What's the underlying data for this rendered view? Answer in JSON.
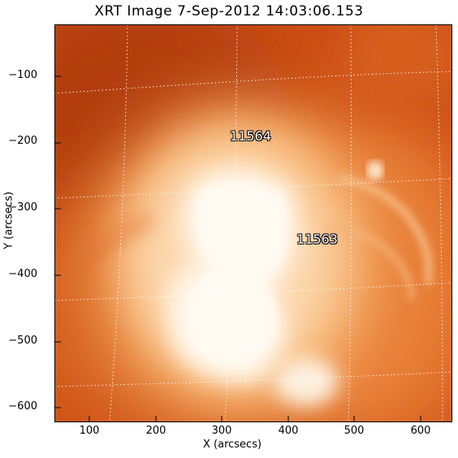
{
  "title": "XRT Image   7-Sep-2012 14:03:06.153",
  "xlabel": "X (arcsecs)",
  "ylabel": "Y (arcsecs)",
  "yticks": [
    "−100",
    "−200",
    "−300",
    "−400",
    "−500",
    "−600"
  ],
  "xticks": [
    "100",
    "200",
    "300",
    "400",
    "500",
    "600"
  ],
  "regions": [
    "11564",
    "11563"
  ],
  "colors": {
    "dark": "#b33a0e",
    "mid": "#e06820",
    "bright": "#fff4e6"
  }
}
